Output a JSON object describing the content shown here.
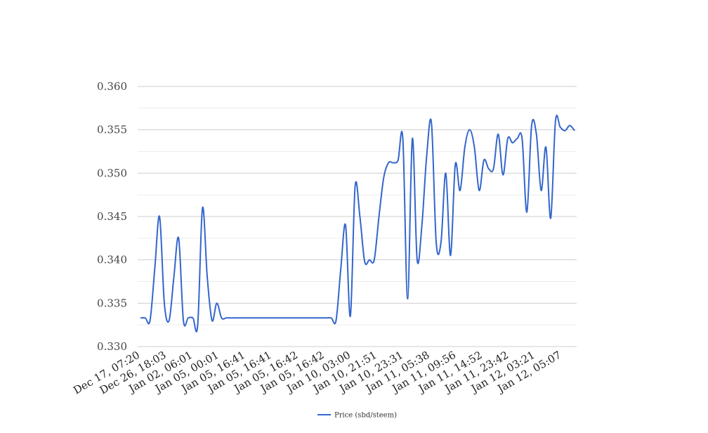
{
  "chart_data": {
    "type": "line",
    "title": "",
    "xlabel": "",
    "ylabel": "",
    "ylim": [
      0.33,
      0.36
    ],
    "y_ticks": [
      "0.330",
      "0.335",
      "0.340",
      "0.345",
      "0.350",
      "0.355",
      "0.360"
    ],
    "x_tick_labels": [
      "Dec 17, 07:20",
      "Dec 26, 18:03",
      "Jan 02, 06:01",
      "Jan 05, 00:01",
      "Jan 05, 16:41",
      "Jan 05, 16:41",
      "Jan 05, 16:42",
      "Jan 05, 16:42",
      "Jan 10, 03:00",
      "Jan 10, 21:51",
      "Jan 10, 23:31",
      "Jan 11, 05:38",
      "Jan 11, 09:56",
      "Jan 11, 14:52",
      "Jan 11, 23:42",
      "Jan 12, 03:21",
      "Jan 12, 05:07"
    ],
    "grid": true,
    "legend_position": "bottom",
    "series": [
      {
        "name": "Price (sbd/steem)",
        "color": "#3366cc",
        "values": [
          0.3333,
          0.3333,
          0.333,
          0.339,
          0.345,
          0.335,
          0.333,
          0.338,
          0.3425,
          0.333,
          0.3333,
          0.3333,
          0.3325,
          0.346,
          0.338,
          0.333,
          0.335,
          0.3333,
          0.3333,
          0.3333,
          0.3333,
          0.3333,
          0.3333,
          0.3333,
          0.3333,
          0.3333,
          0.3333,
          0.3333,
          0.3333,
          0.3333,
          0.3333,
          0.3333,
          0.3333,
          0.3333,
          0.3333,
          0.3333,
          0.3333,
          0.3333,
          0.3333,
          0.3333,
          0.3333,
          0.333,
          0.339,
          0.344,
          0.3335,
          0.3485,
          0.345,
          0.3398,
          0.34,
          0.34,
          0.345,
          0.3495,
          0.3512,
          0.3512,
          0.3515,
          0.354,
          0.3355,
          0.354,
          0.34,
          0.344,
          0.352,
          0.3558,
          0.342,
          0.342,
          0.35,
          0.3405,
          0.351,
          0.348,
          0.353,
          0.355,
          0.353,
          0.348,
          0.3515,
          0.3505,
          0.3505,
          0.3545,
          0.3498,
          0.354,
          0.3535,
          0.354,
          0.354,
          0.3455,
          0.3555,
          0.3545,
          0.348,
          0.353,
          0.3448,
          0.356,
          0.3553,
          0.3549,
          0.3555,
          0.3549
        ]
      }
    ]
  }
}
